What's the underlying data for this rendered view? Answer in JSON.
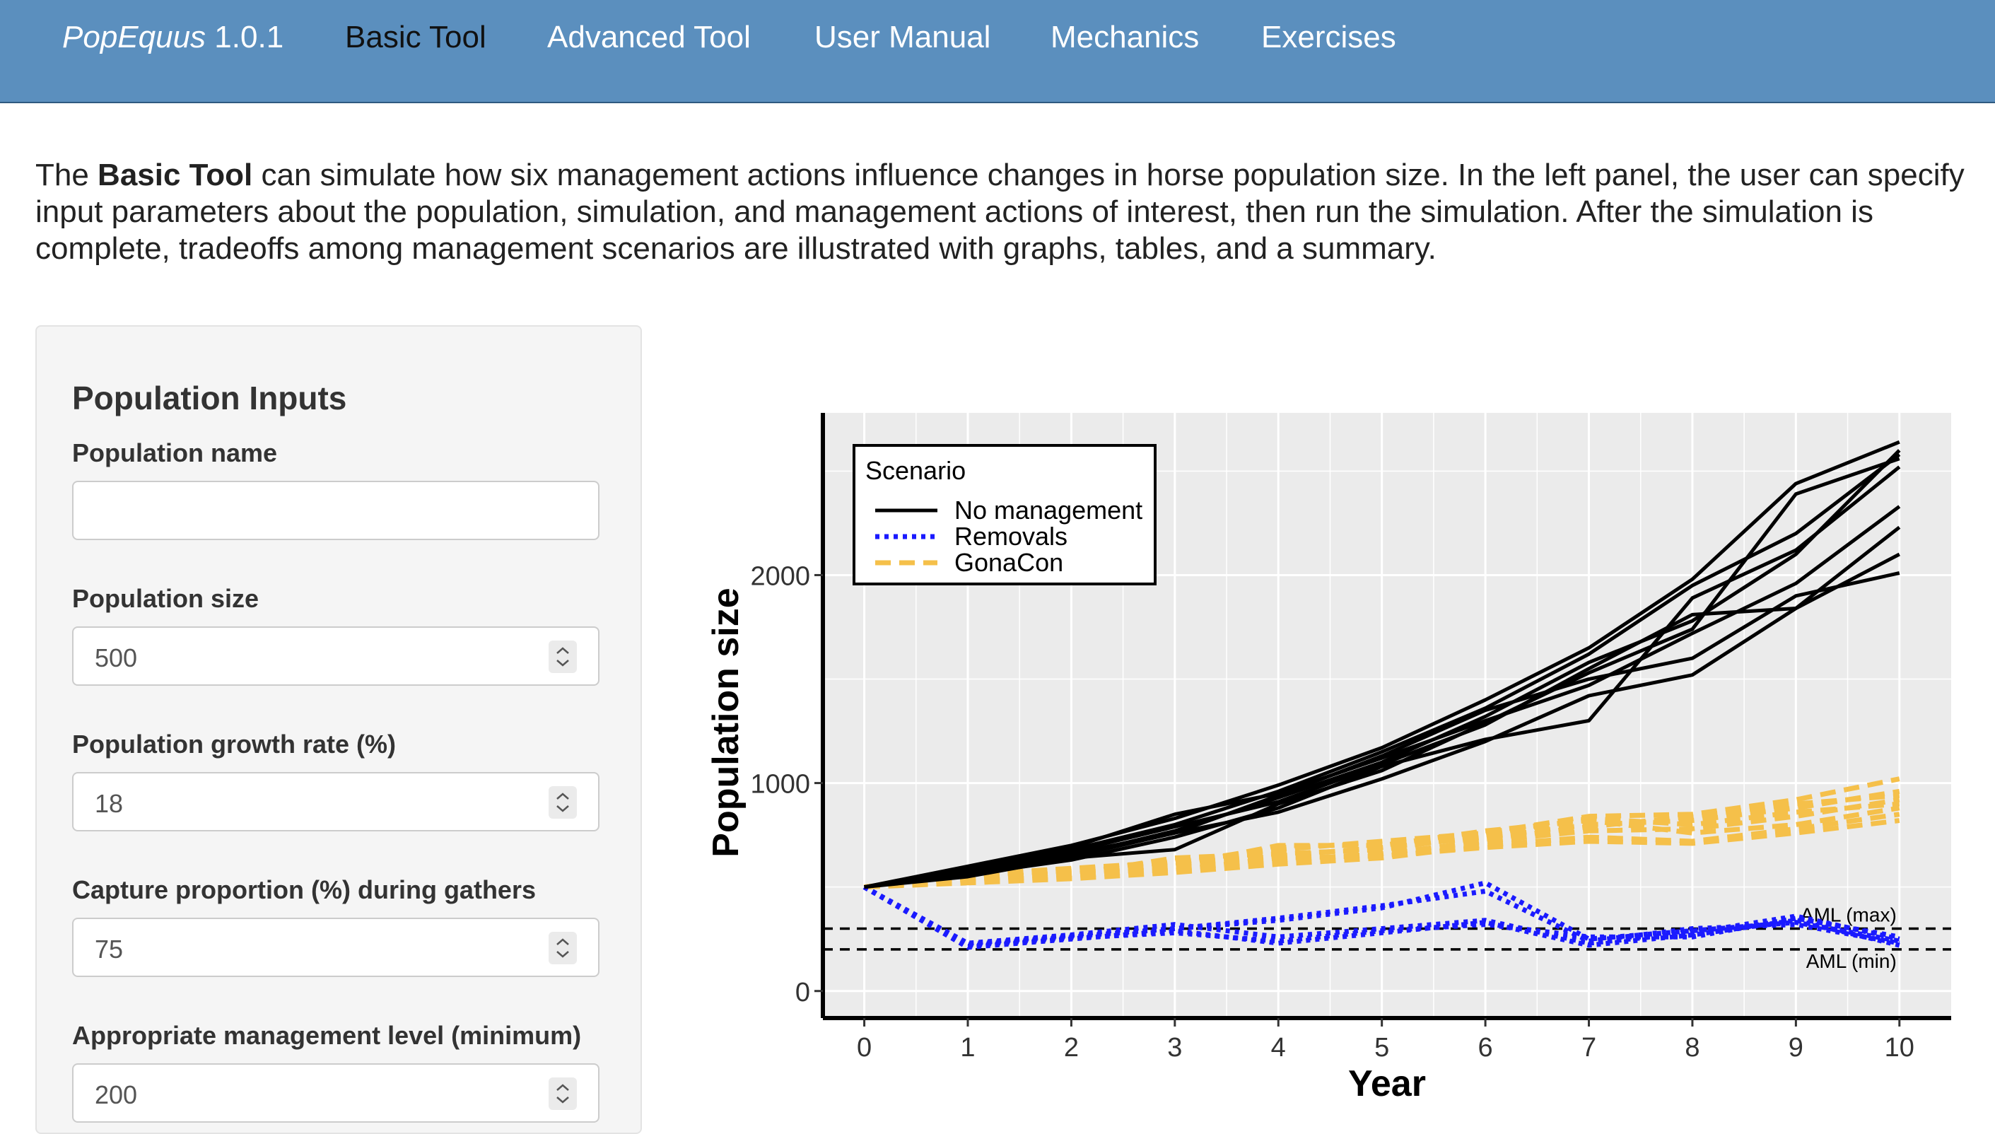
{
  "nav": {
    "brand_name": "PopEquus",
    "brand_version": "1.0.1",
    "tabs": [
      {
        "label": "Basic Tool",
        "active": true
      },
      {
        "label": "Advanced Tool",
        "active": false
      },
      {
        "label": "User Manual",
        "active": false
      },
      {
        "label": "Mechanics",
        "active": false
      },
      {
        "label": "Exercises",
        "active": false
      }
    ]
  },
  "intro": {
    "lead": "The ",
    "bold": "Basic Tool",
    "rest": " can simulate how six management actions influence changes in horse population size. In the left panel, the user can specify input parameters about the population, simulation, and management actions of interest, then run the simulation. After the simulation is complete, tradeoffs among management scenarios are illustrated with graphs, tables, and a summary."
  },
  "panel": {
    "title": "Population Inputs",
    "fields": [
      {
        "label": "Population name",
        "value": "",
        "type": "text"
      },
      {
        "label": "Population size",
        "value": "500",
        "type": "number"
      },
      {
        "label": "Population growth rate (%)",
        "value": "18",
        "type": "number"
      },
      {
        "label": "Capture proportion (%) during gathers",
        "value": "75",
        "type": "number"
      },
      {
        "label": "Appropriate management level (minimum)",
        "value": "200",
        "type": "number"
      }
    ]
  },
  "chart_data": {
    "type": "line",
    "xlabel": "Year",
    "ylabel": "Population size",
    "xlim": [
      -0.4,
      10.5
    ],
    "ylim": [
      -130,
      2780
    ],
    "x_ticks": [
      0,
      1,
      2,
      3,
      4,
      5,
      6,
      7,
      8,
      9,
      10
    ],
    "y_ticks": [
      0,
      1000,
      2000
    ],
    "grid": true,
    "legend": {
      "title": "Scenario",
      "placement": "top-left",
      "entries": [
        {
          "name": "No management",
          "color": "#000000",
          "dash": "solid"
        },
        {
          "name": "Removals",
          "color": "#1a1aff",
          "dash": "dotted"
        },
        {
          "name": "GonaCon",
          "color": "#f5c04a",
          "dash": "dashed"
        }
      ]
    },
    "reference_lines": [
      {
        "label": "AML (max)",
        "y": 300
      },
      {
        "label": "AML (min)",
        "y": 200
      }
    ],
    "x": [
      0,
      1,
      2,
      3,
      4,
      5,
      6,
      7,
      8,
      9,
      10
    ],
    "series": [
      {
        "group": "No management",
        "values": [
          500,
          590,
          680,
          800,
          960,
          1150,
          1360,
          1620,
          1950,
          2200,
          2580
        ]
      },
      {
        "group": "No management",
        "values": [
          500,
          600,
          700,
          830,
          990,
          1170,
          1400,
          1650,
          1980,
          2440,
          2640
        ]
      },
      {
        "group": "No management",
        "values": [
          500,
          570,
          650,
          770,
          930,
          1100,
          1320,
          1580,
          1780,
          2100,
          2600
        ]
      },
      {
        "group": "No management",
        "values": [
          500,
          550,
          640,
          680,
          900,
          1060,
          1290,
          1530,
          1740,
          2390,
          2560
        ]
      },
      {
        "group": "No management",
        "values": [
          500,
          580,
          690,
          850,
          950,
          1120,
          1300,
          1470,
          1720,
          1960,
          2330
        ]
      },
      {
        "group": "No management",
        "values": [
          500,
          560,
          630,
          740,
          880,
          1080,
          1210,
          1300,
          1890,
          2120,
          2520
        ]
      },
      {
        "group": "No management",
        "values": [
          500,
          590,
          670,
          790,
          910,
          1090,
          1280,
          1550,
          1810,
          1840,
          2230
        ]
      },
      {
        "group": "No management",
        "values": [
          500,
          575,
          660,
          760,
          940,
          1130,
          1350,
          1500,
          1600,
          1900,
          2010
        ]
      },
      {
        "group": "No management",
        "values": [
          500,
          565,
          645,
          760,
          860,
          1020,
          1200,
          1420,
          1520,
          1840,
          2100
        ]
      },
      {
        "group": "Removals",
        "values": [
          500,
          220,
          260,
          300,
          340,
          400,
          520,
          250,
          290,
          330,
          240
        ]
      },
      {
        "group": "Removals",
        "values": [
          500,
          230,
          270,
          320,
          260,
          300,
          340,
          230,
          280,
          360,
          250
        ]
      },
      {
        "group": "Removals",
        "values": [
          500,
          210,
          250,
          290,
          230,
          280,
          330,
          220,
          270,
          340,
          220
        ]
      },
      {
        "group": "Removals",
        "values": [
          500,
          225,
          265,
          300,
          350,
          410,
          480,
          240,
          300,
          320,
          230
        ]
      },
      {
        "group": "Removals",
        "values": [
          500,
          215,
          255,
          280,
          240,
          290,
          320,
          260,
          260,
          350,
          260
        ]
      },
      {
        "group": "GonaCon",
        "values": [
          500,
          560,
          590,
          620,
          680,
          720,
          760,
          840,
          850,
          920,
          1020
        ]
      },
      {
        "group": "GonaCon",
        "values": [
          500,
          540,
          570,
          610,
          650,
          690,
          740,
          800,
          820,
          880,
          960
        ]
      },
      {
        "group": "GonaCon",
        "values": [
          500,
          530,
          550,
          590,
          630,
          660,
          720,
          770,
          780,
          840,
          920
        ]
      },
      {
        "group": "GonaCon",
        "values": [
          500,
          550,
          580,
          600,
          700,
          700,
          770,
          820,
          760,
          800,
          880
        ]
      },
      {
        "group": "GonaCon",
        "values": [
          500,
          520,
          540,
          570,
          610,
          640,
          700,
          740,
          720,
          780,
          850
        ]
      },
      {
        "group": "GonaCon",
        "values": [
          500,
          545,
          560,
          640,
          660,
          680,
          750,
          830,
          800,
          860,
          900
        ]
      },
      {
        "group": "GonaCon",
        "values": [
          500,
          535,
          575,
          580,
          640,
          650,
          690,
          720,
          710,
          760,
          820
        ]
      },
      {
        "group": "GonaCon",
        "values": [
          500,
          555,
          585,
          615,
          690,
          710,
          730,
          790,
          840,
          900,
          940
        ]
      }
    ]
  }
}
